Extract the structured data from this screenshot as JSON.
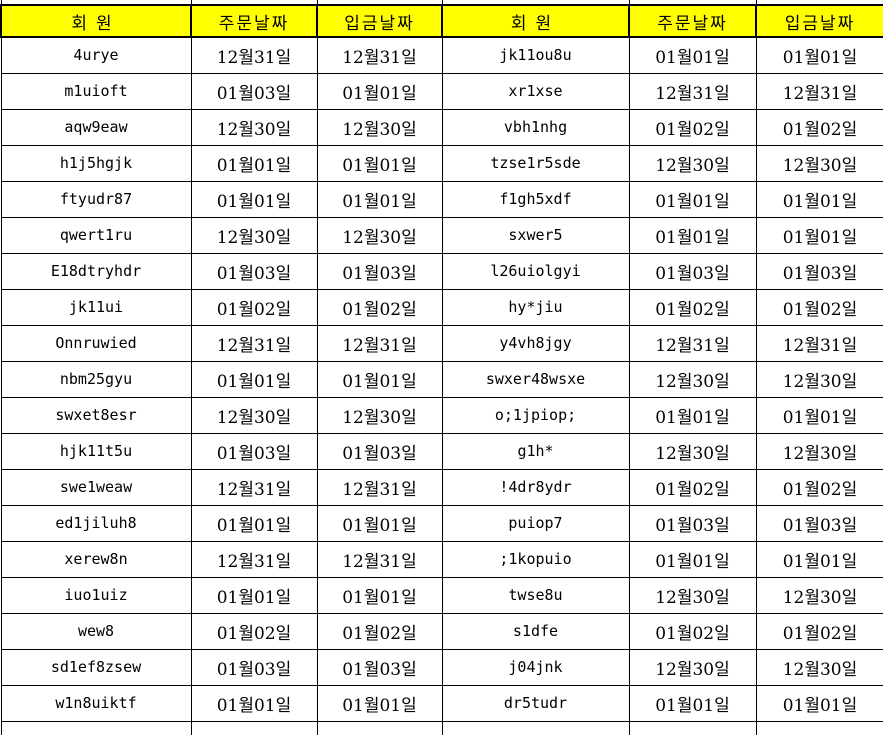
{
  "table": {
    "headers": {
      "member": "회원",
      "order_date": "주문날짜",
      "deposit_date": "입금날짜"
    },
    "rows_left": [
      {
        "member": "4urye",
        "order": "12월31일",
        "deposit": "12월31일"
      },
      {
        "member": "m1uioft",
        "order": "01월03일",
        "deposit": "01월01일"
      },
      {
        "member": "aqw9eaw",
        "order": "12월30일",
        "deposit": "12월30일"
      },
      {
        "member": "h1j5hgjk",
        "order": "01월01일",
        "deposit": "01월01일"
      },
      {
        "member": "ftyudr87",
        "order": "01월01일",
        "deposit": "01월01일"
      },
      {
        "member": "qwert1ru",
        "order": "12월30일",
        "deposit": "12월30일"
      },
      {
        "member": "E18dtryhdr",
        "order": "01월03일",
        "deposit": "01월03일"
      },
      {
        "member": "jk11ui",
        "order": "01월02일",
        "deposit": "01월02일"
      },
      {
        "member": "Onnruwied",
        "order": "12월31일",
        "deposit": "12월31일"
      },
      {
        "member": "nbm25gyu",
        "order": "01월01일",
        "deposit": "01월01일"
      },
      {
        "member": "swxet8esr",
        "order": "12월30일",
        "deposit": "12월30일"
      },
      {
        "member": "hjk11t5u",
        "order": "01월03일",
        "deposit": "01월03일"
      },
      {
        "member": "swe1weaw",
        "order": "12월31일",
        "deposit": "12월31일"
      },
      {
        "member": "ed1jiluh8",
        "order": "01월01일",
        "deposit": "01월01일"
      },
      {
        "member": "xerew8n",
        "order": "12월31일",
        "deposit": "12월31일"
      },
      {
        "member": "iuo1uiz",
        "order": "01월01일",
        "deposit": "01월01일"
      },
      {
        "member": "wew8",
        "order": "01월02일",
        "deposit": "01월02일"
      },
      {
        "member": "sd1ef8zsew",
        "order": "01월03일",
        "deposit": "01월03일"
      },
      {
        "member": "w1n8uiktf",
        "order": "01월01일",
        "deposit": "01월01일"
      }
    ],
    "rows_right": [
      {
        "member": "jk11ou8u",
        "order": "01월01일",
        "deposit": "01월01일"
      },
      {
        "member": "xr1xse",
        "order": "12월31일",
        "deposit": "12월31일"
      },
      {
        "member": "vbh1nhg",
        "order": "01월02일",
        "deposit": "01월02일"
      },
      {
        "member": "tzse1r5sde",
        "order": "12월30일",
        "deposit": "12월30일"
      },
      {
        "member": "f1gh5xdf",
        "order": "01월01일",
        "deposit": "01월01일"
      },
      {
        "member": "sxwer5",
        "order": "01월01일",
        "deposit": "01월01일"
      },
      {
        "member": "l26uiolgyi",
        "order": "01월03일",
        "deposit": "01월03일"
      },
      {
        "member": "hy*jiu",
        "order": "01월02일",
        "deposit": "01월02일"
      },
      {
        "member": "y4vh8jgy",
        "order": "12월31일",
        "deposit": "12월31일"
      },
      {
        "member": "swxer48wsxe",
        "order": "12월30일",
        "deposit": "12월30일"
      },
      {
        "member": "o;1jpiop;",
        "order": "01월01일",
        "deposit": "01월01일"
      },
      {
        "member": "g1h*",
        "order": "12월30일",
        "deposit": "12월30일"
      },
      {
        "member": "!4dr8ydr",
        "order": "01월02일",
        "deposit": "01월02일"
      },
      {
        "member": "puiop7",
        "order": "01월03일",
        "deposit": "01월03일"
      },
      {
        "member": ";1kopuio",
        "order": "01월01일",
        "deposit": "01월01일"
      },
      {
        "member": "twse8u",
        "order": "12월30일",
        "deposit": "12월30일"
      },
      {
        "member": "s1dfe",
        "order": "01월02일",
        "deposit": "01월02일"
      },
      {
        "member": "j04jnk",
        "order": "12월30일",
        "deposit": "12월30일"
      },
      {
        "member": "dr5tudr",
        "order": "01월01일",
        "deposit": "01월01일"
      }
    ]
  },
  "colors": {
    "header_bg": "#FFFF00",
    "header_text": "#000000",
    "grid": "#000000",
    "row_bg": "#FFFFFF"
  }
}
